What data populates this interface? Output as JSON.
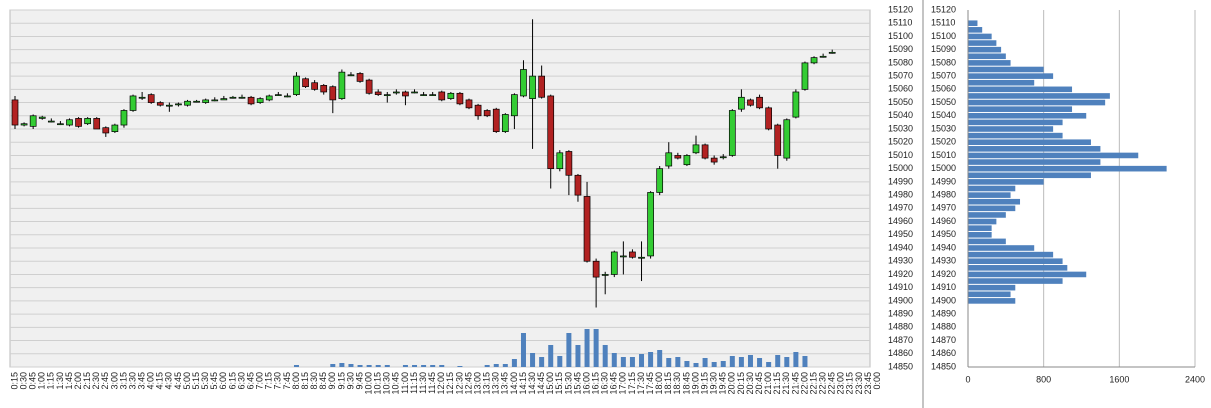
{
  "chart_data": [
    {
      "type": "candlestick",
      "categories": [
        "0:15",
        "0:30",
        "0:45",
        "1:00",
        "1:15",
        "1:30",
        "1:45",
        "2:00",
        "2:15",
        "2:30",
        "2:45",
        "3:00",
        "3:15",
        "3:30",
        "3:45",
        "4:00",
        "4:15",
        "4:30",
        "4:45",
        "5:00",
        "5:15",
        "5:30",
        "5:45",
        "6:00",
        "6:15",
        "6:30",
        "6:45",
        "7:00",
        "7:15",
        "7:30",
        "7:45",
        "8:00",
        "8:15",
        "8:30",
        "8:45",
        "9:00",
        "9:15",
        "9:30",
        "9:45",
        "10:00",
        "10:15",
        "10:30",
        "10:45",
        "11:00",
        "11:15",
        "11:30",
        "11:45",
        "12:00",
        "12:15",
        "12:30",
        "12:45",
        "13:00",
        "13:15",
        "13:30",
        "13:45",
        "14:00",
        "14:15",
        "14:30",
        "14:45",
        "15:00",
        "15:15",
        "15:30",
        "15:45",
        "16:00",
        "16:15",
        "16:30",
        "16:45",
        "17:00",
        "17:15",
        "17:30",
        "17:45",
        "18:00",
        "18:15",
        "18:30",
        "18:45",
        "19:00",
        "19:15",
        "19:30",
        "19:45",
        "20:00",
        "20:15",
        "20:30",
        "20:45",
        "21:00",
        "21:15",
        "21:30",
        "21:45",
        "22:00",
        "22:15",
        "22:30",
        "22:45",
        "23:00",
        "23:15",
        "23:30",
        "23:45",
        "0:00"
      ],
      "open": [
        15052,
        15033,
        15032,
        15038,
        15036,
        15034,
        15033,
        15038,
        15034,
        15038,
        15031,
        15028,
        15033,
        15044,
        15054,
        15056,
        15050,
        15048,
        15049,
        15048,
        15051,
        15050,
        15052,
        15052,
        15054,
        15054,
        15054,
        15050,
        15052,
        15056,
        15055,
        15056,
        15068,
        15065,
        15063,
        15062,
        15053,
        15071,
        15072,
        15067,
        15058,
        15056,
        15058,
        15058,
        15058,
        15056,
        15056,
        15058,
        15053,
        15057,
        15052,
        15048,
        15044,
        15045,
        15028,
        15040,
        15055,
        15053,
        15070,
        15055,
        15000,
        15013,
        14995,
        14979,
        14930,
        14920,
        14920,
        14934,
        14937,
        14933,
        14934,
        14982,
        15002,
        15010,
        15003,
        15012,
        15018,
        15008,
        15009,
        15010,
        15045,
        15052,
        15054,
        15046,
        15033,
        15008,
        15039,
        15060,
        15080,
        15085,
        15088,
        null,
        null,
        null,
        null,
        null
      ],
      "high": [
        15055,
        15035,
        15041,
        15040,
        15038,
        15036,
        15038,
        15039,
        15039,
        15039,
        15032,
        15034,
        15045,
        15056,
        15058,
        15057,
        15051,
        15050,
        15050,
        15052,
        15052,
        15053,
        15054,
        15055,
        15055,
        15056,
        15055,
        15054,
        15056,
        15058,
        15057,
        15073,
        15069,
        15067,
        15064,
        15063,
        15075,
        15073,
        15073,
        15068,
        15060,
        15058,
        15060,
        15059,
        15060,
        15058,
        15058,
        15059,
        15058,
        15058,
        15053,
        15049,
        15045,
        15046,
        15042,
        15057,
        15082,
        15113,
        15078,
        15056,
        15014,
        15014,
        14996,
        14990,
        14932,
        14922,
        14938,
        14945,
        14939,
        14945,
        14983,
        15002,
        15020,
        15012,
        15011,
        15025,
        15019,
        15010,
        15011,
        15045,
        15060,
        15053,
        15056,
        15047,
        15034,
        15038,
        15060,
        15081,
        15085,
        15087,
        15090,
        null,
        null,
        null,
        null,
        null
      ],
      "low": [
        15030,
        15032,
        15030,
        15037,
        15035,
        15033,
        15032,
        15031,
        15033,
        15030,
        15024,
        15027,
        15031,
        15043,
        15052,
        15049,
        15047,
        15043,
        15047,
        15047,
        15050,
        15049,
        15051,
        15052,
        15053,
        15053,
        15048,
        15049,
        15051,
        15055,
        15054,
        15055,
        15061,
        15059,
        15056,
        15042,
        15052,
        15070,
        15065,
        15056,
        15055,
        15050,
        15056,
        15048,
        15057,
        15055,
        15055,
        15051,
        15052,
        15048,
        15045,
        15037,
        15039,
        15027,
        15027,
        15030,
        15054,
        15015,
        15053,
        14985,
        14998,
        14980,
        14975,
        14929,
        14895,
        14905,
        14918,
        14920,
        14932,
        14915,
        14932,
        14980,
        15000,
        15007,
        15002,
        15011,
        15007,
        15003,
        15007,
        15009,
        15043,
        15047,
        15045,
        15029,
        15000,
        15006,
        15038,
        15059,
        15079,
        15084,
        15087,
        null,
        null,
        null,
        null,
        null
      ],
      "close": [
        15033,
        15034,
        15040,
        15039,
        15036,
        15034,
        15037,
        15032,
        15038,
        15030,
        15027,
        15033,
        15044,
        15055,
        15054,
        15050,
        15048,
        15048,
        15049,
        15051,
        15051,
        15052,
        15052,
        15053,
        15054,
        15054,
        15049,
        15053,
        15055,
        15056,
        15055,
        15070,
        15062,
        15060,
        15058,
        15052,
        15073,
        15071,
        15066,
        15057,
        15056,
        15056,
        15058,
        15055,
        15058,
        15056,
        15056,
        15052,
        15057,
        15049,
        15046,
        15040,
        15040,
        15028,
        15041,
        15056,
        15075,
        15070,
        15054,
        15000,
        15012,
        14995,
        14980,
        14930,
        14918,
        14920,
        14937,
        14934,
        14933,
        14933,
        14982,
        15000,
        15012,
        15008,
        15010,
        15018,
        15008,
        15005,
        15009,
        15044,
        15054,
        15048,
        15046,
        15030,
        15010,
        15037,
        15058,
        15080,
        15084,
        15085,
        15088,
        null,
        null,
        null,
        null,
        null
      ],
      "volume": [
        0,
        0,
        0,
        0,
        0,
        0,
        0,
        0,
        0,
        0,
        0,
        0,
        0,
        0,
        0,
        0,
        0,
        0,
        0,
        0,
        0,
        0,
        0,
        0,
        0,
        0,
        0,
        0,
        0,
        0,
        0,
        2,
        0,
        0,
        0,
        3,
        4,
        3,
        2,
        2,
        2,
        2,
        0,
        2,
        2,
        2,
        2,
        2,
        0,
        1,
        0,
        0,
        2,
        3,
        3,
        8,
        34,
        14,
        10,
        22,
        11,
        34,
        22,
        38,
        38,
        22,
        14,
        10,
        10,
        13,
        15,
        17,
        9,
        10,
        6,
        4,
        9,
        5,
        6,
        11,
        10,
        12,
        9,
        5,
        12,
        10,
        15,
        11,
        0,
        0,
        0,
        null,
        null,
        null,
        null,
        null
      ],
      "up_color": "#33cc33",
      "down_color": "#b22222",
      "volume_color": "#4f81bd",
      "ylim": [
        14850,
        15120
      ],
      "yticks": [
        14850,
        14860,
        14870,
        14880,
        14890,
        14900,
        14910,
        14920,
        14930,
        14940,
        14950,
        14960,
        14970,
        14980,
        14990,
        15000,
        15010,
        15020,
        15030,
        15040,
        15050,
        15060,
        15070,
        15080,
        15090,
        15100,
        15110,
        15120
      ],
      "grid": true
    },
    {
      "type": "barh",
      "levels": [
        15110,
        15105,
        15100,
        15095,
        15090,
        15085,
        15080,
        15075,
        15070,
        15065,
        15060,
        15055,
        15050,
        15045,
        15040,
        15035,
        15030,
        15025,
        15020,
        15015,
        15010,
        15005,
        15000,
        14995,
        14990,
        14985,
        14980,
        14975,
        14970,
        14965,
        14960,
        14955,
        14950,
        14945,
        14940,
        14935,
        14930,
        14925,
        14920,
        14915,
        14910,
        14905,
        14900
      ],
      "values": [
        100,
        150,
        250,
        300,
        350,
        400,
        450,
        800,
        900,
        700,
        1100,
        1500,
        1450,
        1100,
        1250,
        1000,
        900,
        1000,
        1300,
        1400,
        1800,
        1400,
        2100,
        1300,
        800,
        500,
        450,
        550,
        500,
        400,
        300,
        250,
        250,
        400,
        700,
        900,
        1000,
        1050,
        1250,
        1000,
        500,
        450,
        500
      ],
      "color": "#4f81bd",
      "ylim": [
        14850,
        15120
      ],
      "yticks": [
        14850,
        14860,
        14870,
        14880,
        14890,
        14900,
        14910,
        14920,
        14930,
        14940,
        14950,
        14960,
        14970,
        14980,
        14990,
        15000,
        15010,
        15020,
        15030,
        15040,
        15050,
        15060,
        15070,
        15080,
        15090,
        15100,
        15110,
        15120
      ],
      "xlim": [
        0,
        2400
      ],
      "xticks": [
        0,
        800,
        1600,
        2400
      ],
      "grid": true
    }
  ]
}
